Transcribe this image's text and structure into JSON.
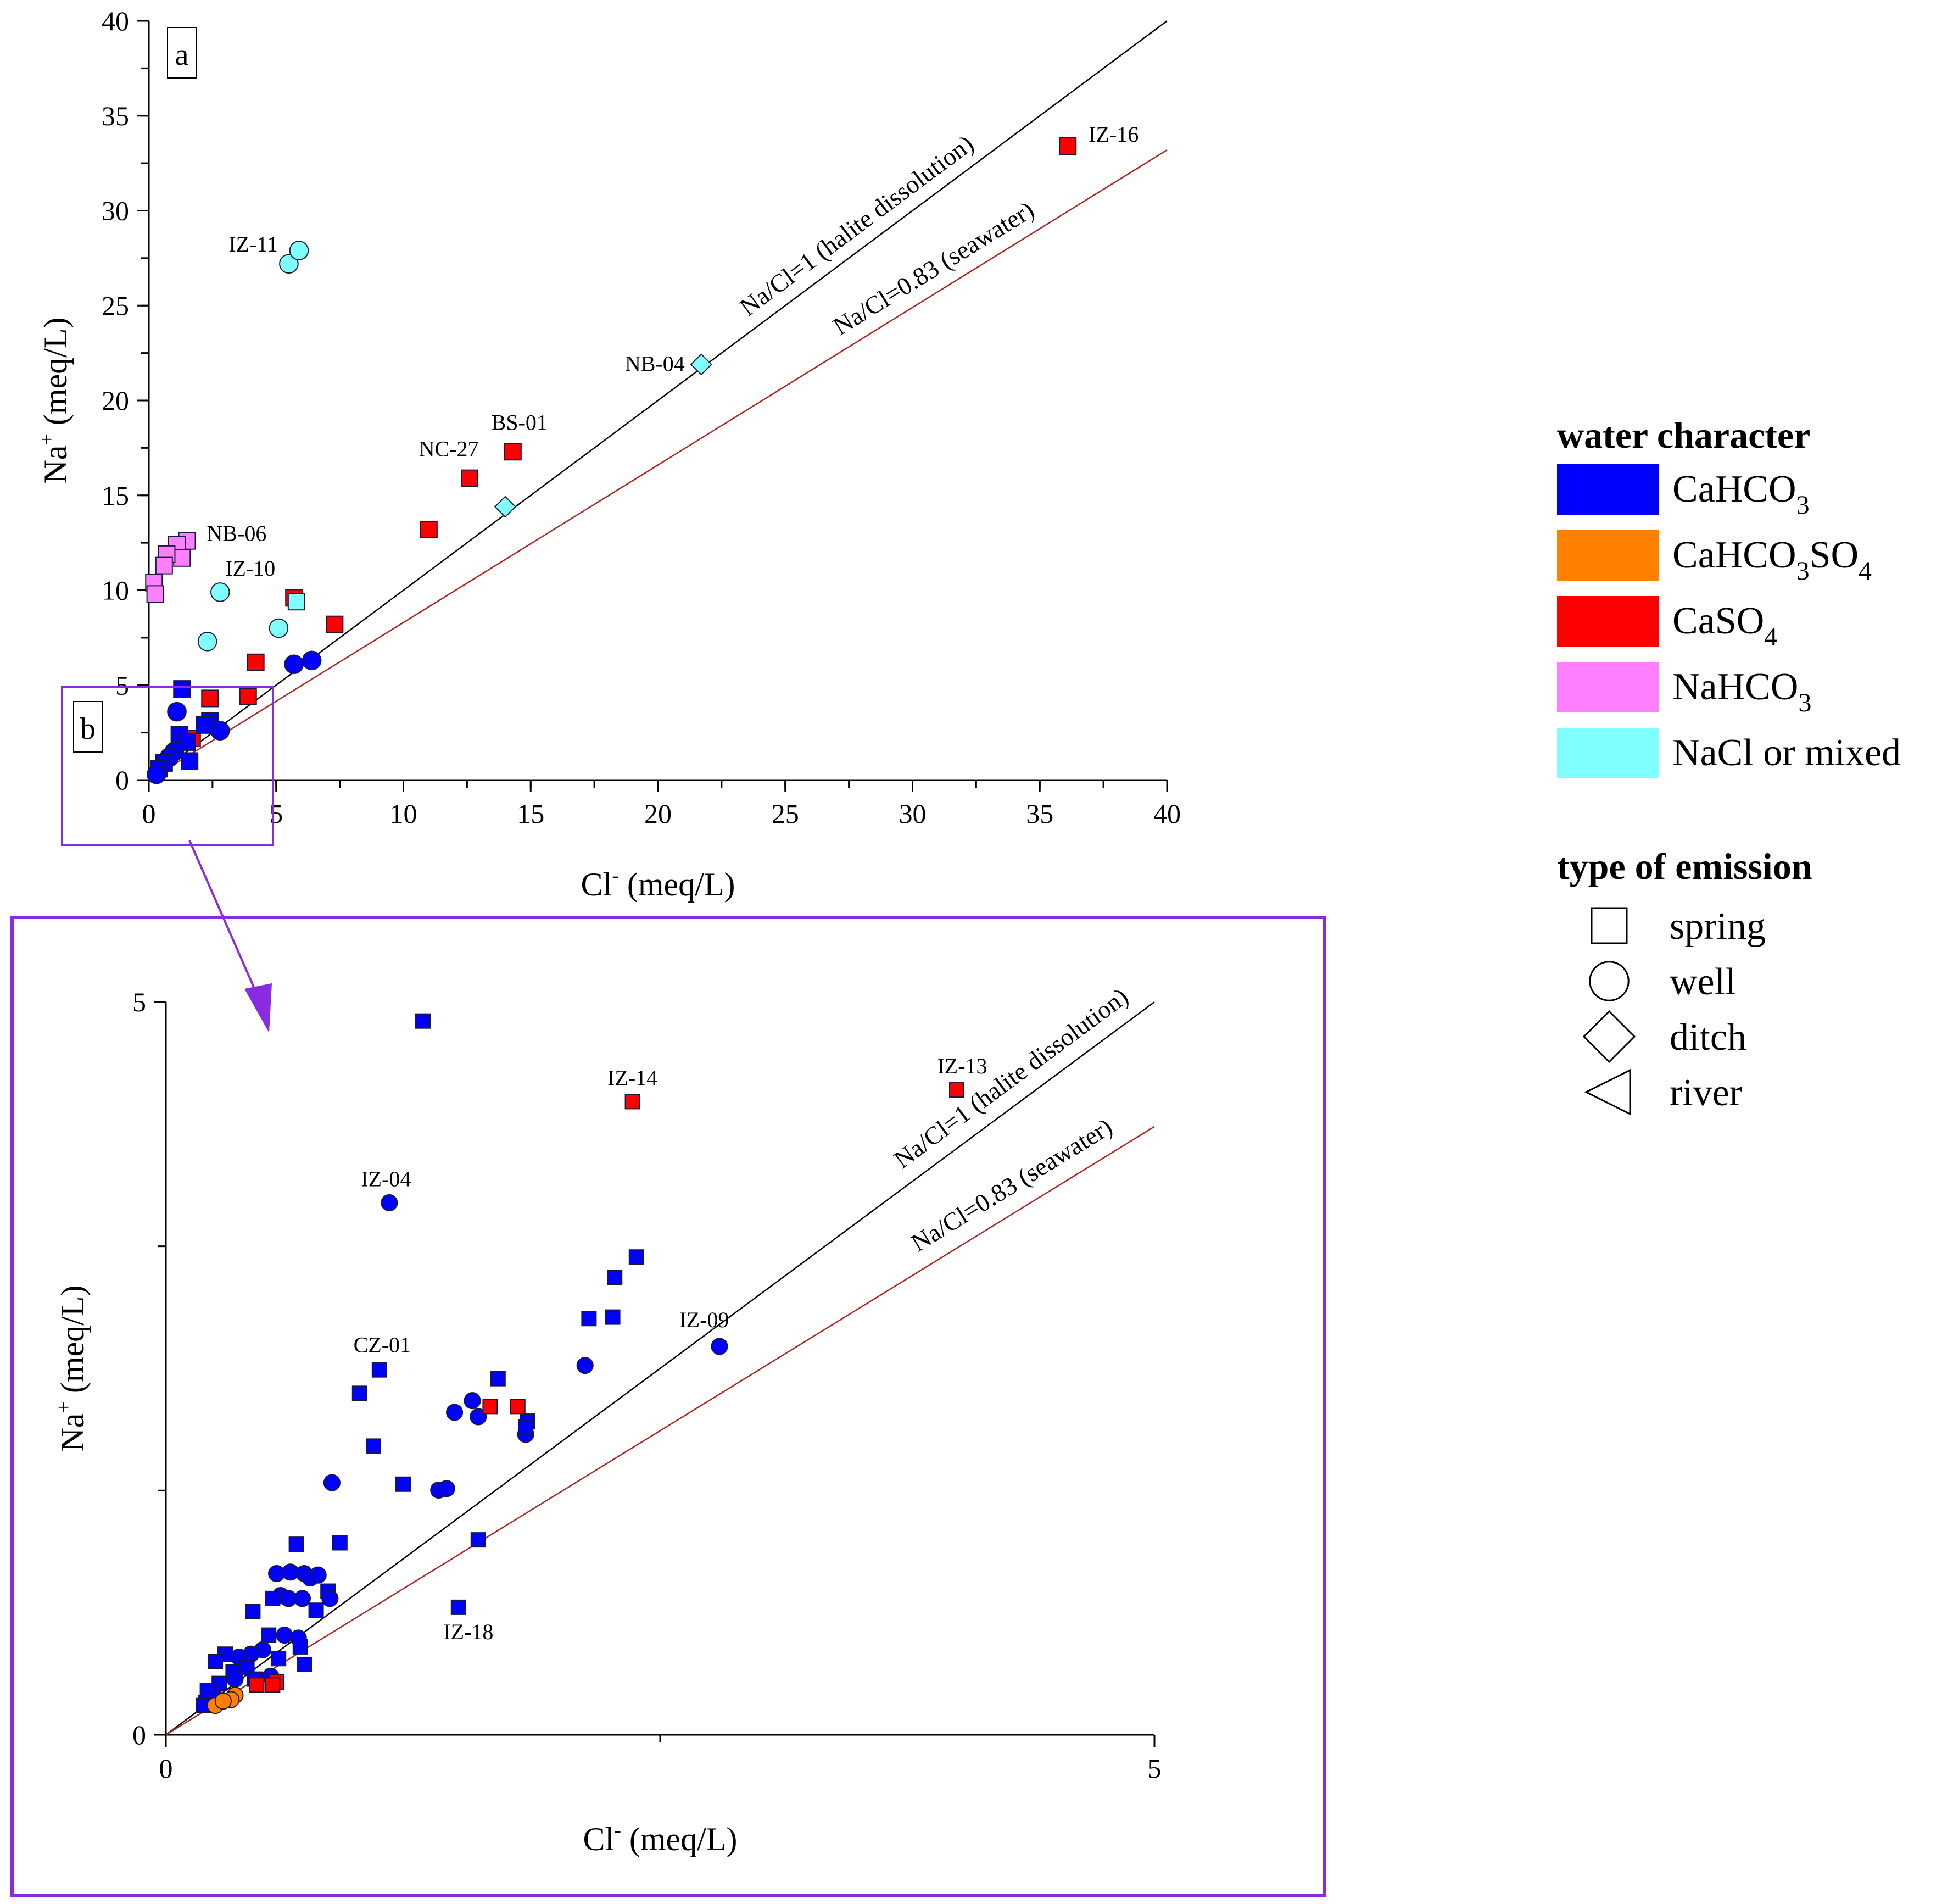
{
  "chart_data": [
    {
      "panel": "a",
      "type": "scatter",
      "xlabel": "Cl",
      "xlabel_sup": "-",
      "xlabel_unit": " (meq/L)",
      "ylabel": "Na",
      "ylabel_sup": "+",
      "ylabel_unit": " (meq/L)",
      "xlim": [
        0,
        40
      ],
      "ylim": [
        0,
        40
      ],
      "x_ticks": [
        0,
        5,
        10,
        15,
        20,
        25,
        30,
        35,
        40
      ],
      "y_ticks": [
        0,
        5,
        10,
        15,
        20,
        25,
        30,
        35,
        40
      ],
      "inset_box_label": "b",
      "reference_lines": [
        {
          "label": "Na/Cl=1 (halite dissolution)",
          "slope": 1.0,
          "color": "#000000"
        },
        {
          "label": "Na/Cl=0.83 (seawater)",
          "slope": 0.83,
          "color": "#b22222"
        }
      ],
      "points": [
        {
          "x": 36.1,
          "y": 33.4,
          "class": "CaSO4",
          "emission": "spring",
          "label": "IZ-16"
        },
        {
          "x": 14.3,
          "y": 17.3,
          "class": "CaSO4",
          "emission": "spring",
          "label": "BS-01"
        },
        {
          "x": 12.6,
          "y": 15.9,
          "class": "CaSO4",
          "emission": "spring",
          "label": "NC-27"
        },
        {
          "x": 11.0,
          "y": 13.2,
          "class": "CaSO4",
          "emission": "spring"
        },
        {
          "x": 5.7,
          "y": 9.6,
          "class": "CaSO4",
          "emission": "spring"
        },
        {
          "x": 7.3,
          "y": 8.2,
          "class": "CaSO4",
          "emission": "spring"
        },
        {
          "x": 4.2,
          "y": 6.2,
          "class": "CaSO4",
          "emission": "spring"
        },
        {
          "x": 2.4,
          "y": 4.3,
          "class": "CaSO4",
          "emission": "spring"
        },
        {
          "x": 3.9,
          "y": 4.4,
          "class": "CaSO4",
          "emission": "spring"
        },
        {
          "x": 1.7,
          "y": 2.2,
          "class": "CaSO4",
          "emission": "spring"
        },
        {
          "x": 21.7,
          "y": 21.9,
          "class": "NaCl or mixed",
          "emission": "ditch",
          "label": "NB-04"
        },
        {
          "x": 14.0,
          "y": 14.4,
          "class": "NaCl or mixed",
          "emission": "ditch"
        },
        {
          "x": 5.5,
          "y": 27.2,
          "class": "NaCl or mixed",
          "emission": "well",
          "label": "IZ-11"
        },
        {
          "x": 5.9,
          "y": 27.9,
          "class": "NaCl or mixed",
          "emission": "well"
        },
        {
          "x": 2.8,
          "y": 9.9,
          "class": "NaCl or mixed",
          "emission": "well",
          "label": "IZ-10"
        },
        {
          "x": 2.3,
          "y": 7.3,
          "class": "NaCl or mixed",
          "emission": "well"
        },
        {
          "x": 5.1,
          "y": 8.0,
          "class": "NaCl or mixed",
          "emission": "well"
        },
        {
          "x": 5.8,
          "y": 9.4,
          "class": "NaCl or mixed",
          "emission": "spring"
        },
        {
          "x": 1.5,
          "y": 12.6,
          "class": "NaHCO3",
          "emission": "spring",
          "label": "NB-06"
        },
        {
          "x": 1.1,
          "y": 12.4,
          "class": "NaHCO3",
          "emission": "spring"
        },
        {
          "x": 1.3,
          "y": 11.7,
          "class": "NaHCO3",
          "emission": "spring"
        },
        {
          "x": 0.7,
          "y": 11.9,
          "class": "NaHCO3",
          "emission": "spring"
        },
        {
          "x": 0.6,
          "y": 11.3,
          "class": "NaHCO3",
          "emission": "spring"
        },
        {
          "x": 0.2,
          "y": 10.4,
          "class": "NaHCO3",
          "emission": "spring"
        },
        {
          "x": 0.25,
          "y": 9.8,
          "class": "NaHCO3",
          "emission": "spring"
        },
        {
          "x": 6.4,
          "y": 6.3,
          "class": "CaHCO3",
          "emission": "well"
        },
        {
          "x": 5.7,
          "y": 6.1,
          "class": "CaHCO3",
          "emission": "well"
        },
        {
          "x": 1.3,
          "y": 4.8,
          "class": "CaHCO3",
          "emission": "spring"
        },
        {
          "x": 1.1,
          "y": 3.6,
          "class": "CaHCO3",
          "emission": "well"
        },
        {
          "x": 2.4,
          "y": 3.1,
          "class": "CaHCO3",
          "emission": "spring"
        },
        {
          "x": 2.2,
          "y": 2.9,
          "class": "CaHCO3",
          "emission": "spring"
        },
        {
          "x": 2.8,
          "y": 2.6,
          "class": "CaHCO3",
          "emission": "well"
        },
        {
          "x": 1.2,
          "y": 2.4,
          "class": "CaHCO3",
          "emission": "spring"
        },
        {
          "x": 1.5,
          "y": 2.0,
          "class": "CaHCO3",
          "emission": "spring"
        },
        {
          "x": 1.0,
          "y": 1.5,
          "class": "CaHCO3",
          "emission": "well"
        },
        {
          "x": 0.8,
          "y": 1.2,
          "class": "CaHCO3",
          "emission": "well"
        },
        {
          "x": 0.6,
          "y": 0.9,
          "class": "CaHCO3",
          "emission": "spring"
        },
        {
          "x": 0.4,
          "y": 0.6,
          "class": "CaHCO3",
          "emission": "spring"
        },
        {
          "x": 1.6,
          "y": 1.0,
          "class": "CaHCO3",
          "emission": "spring"
        },
        {
          "x": 0.3,
          "y": 0.3,
          "class": "CaHCO3",
          "emission": "well"
        }
      ]
    },
    {
      "panel": "b",
      "type": "scatter",
      "xlabel": "Cl",
      "xlabel_sup": "-",
      "xlabel_unit": " (meq/L)",
      "ylabel": "Na",
      "ylabel_sup": "+",
      "ylabel_unit": " (meq/L)",
      "xlim": [
        0,
        5
      ],
      "ylim": [
        0,
        5
      ],
      "x_ticks": [
        0,
        5
      ],
      "y_ticks": [
        0,
        5
      ],
      "reference_lines": [
        {
          "label": "Na/Cl=1 (halite dissolution)",
          "slope": 1.0,
          "color": "#000000"
        },
        {
          "label": "Na/Cl=0.83 (seawater)",
          "slope": 0.83,
          "color": "#b22222"
        }
      ],
      "points": [
        {
          "x": 1.3,
          "y": 4.87,
          "class": "CaHCO3",
          "emission": "spring"
        },
        {
          "x": 2.36,
          "y": 4.32,
          "class": "CaSO4",
          "emission": "spring",
          "label": "IZ-14"
        },
        {
          "x": 4.0,
          "y": 4.4,
          "class": "CaSO4",
          "emission": "spring",
          "label": "IZ-13"
        },
        {
          "x": 1.13,
          "y": 3.63,
          "class": "CaHCO3",
          "emission": "well",
          "label": "IZ-04"
        },
        {
          "x": 2.38,
          "y": 3.26,
          "class": "CaHCO3",
          "emission": "spring"
        },
        {
          "x": 2.27,
          "y": 3.12,
          "class": "CaHCO3",
          "emission": "spring"
        },
        {
          "x": 2.14,
          "y": 2.84,
          "class": "CaHCO3",
          "emission": "spring"
        },
        {
          "x": 2.26,
          "y": 2.85,
          "class": "CaHCO3",
          "emission": "spring"
        },
        {
          "x": 2.8,
          "y": 2.65,
          "class": "CaHCO3",
          "emission": "well",
          "label": "IZ-09"
        },
        {
          "x": 2.12,
          "y": 2.52,
          "class": "CaHCO3",
          "emission": "well"
        },
        {
          "x": 1.08,
          "y": 2.49,
          "class": "CaHCO3",
          "emission": "spring",
          "label": "CZ-01"
        },
        {
          "x": 0.98,
          "y": 2.33,
          "class": "CaHCO3",
          "emission": "spring"
        },
        {
          "x": 1.68,
          "y": 2.43,
          "class": "CaHCO3",
          "emission": "spring"
        },
        {
          "x": 1.55,
          "y": 2.28,
          "class": "CaHCO3",
          "emission": "well"
        },
        {
          "x": 1.46,
          "y": 2.2,
          "class": "CaHCO3",
          "emission": "well"
        },
        {
          "x": 1.58,
          "y": 2.17,
          "class": "CaHCO3",
          "emission": "well"
        },
        {
          "x": 1.83,
          "y": 2.14,
          "class": "CaHCO3",
          "emission": "spring"
        },
        {
          "x": 1.82,
          "y": 2.05,
          "class": "CaHCO3",
          "emission": "well"
        },
        {
          "x": 1.82,
          "y": 2.1,
          "class": "CaHCO3",
          "emission": "spring"
        },
        {
          "x": 1.64,
          "y": 2.24,
          "class": "CaSO4",
          "emission": "spring"
        },
        {
          "x": 1.78,
          "y": 2.24,
          "class": "CaSO4",
          "emission": "spring"
        },
        {
          "x": 1.05,
          "y": 1.97,
          "class": "CaHCO3",
          "emission": "spring"
        },
        {
          "x": 0.84,
          "y": 1.72,
          "class": "CaHCO3",
          "emission": "well"
        },
        {
          "x": 1.2,
          "y": 1.71,
          "class": "CaHCO3",
          "emission": "spring"
        },
        {
          "x": 1.38,
          "y": 1.67,
          "class": "CaHCO3",
          "emission": "well"
        },
        {
          "x": 1.42,
          "y": 1.68,
          "class": "CaHCO3",
          "emission": "well"
        },
        {
          "x": 1.58,
          "y": 1.33,
          "class": "CaHCO3",
          "emission": "spring"
        },
        {
          "x": 1.48,
          "y": 0.87,
          "class": "CaHCO3",
          "emission": "spring",
          "label": "IZ-18"
        },
        {
          "x": 0.66,
          "y": 1.3,
          "class": "CaHCO3",
          "emission": "spring"
        },
        {
          "x": 0.88,
          "y": 1.31,
          "class": "CaHCO3",
          "emission": "spring"
        },
        {
          "x": 0.56,
          "y": 1.1,
          "class": "CaHCO3",
          "emission": "well"
        },
        {
          "x": 0.63,
          "y": 1.11,
          "class": "CaHCO3",
          "emission": "well"
        },
        {
          "x": 0.7,
          "y": 1.1,
          "class": "CaHCO3",
          "emission": "well"
        },
        {
          "x": 0.73,
          "y": 1.07,
          "class": "CaHCO3",
          "emission": "well"
        },
        {
          "x": 0.77,
          "y": 1.09,
          "class": "CaHCO3",
          "emission": "well"
        },
        {
          "x": 0.82,
          "y": 0.98,
          "class": "CaHCO3",
          "emission": "spring"
        },
        {
          "x": 0.83,
          "y": 0.93,
          "class": "CaHCO3",
          "emission": "well"
        },
        {
          "x": 0.58,
          "y": 0.95,
          "class": "CaHCO3",
          "emission": "well"
        },
        {
          "x": 0.62,
          "y": 0.93,
          "class": "CaHCO3",
          "emission": "well"
        },
        {
          "x": 0.54,
          "y": 0.93,
          "class": "CaHCO3",
          "emission": "spring"
        },
        {
          "x": 0.44,
          "y": 0.84,
          "class": "CaHCO3",
          "emission": "spring"
        },
        {
          "x": 0.76,
          "y": 0.85,
          "class": "CaHCO3",
          "emission": "spring"
        },
        {
          "x": 0.69,
          "y": 0.93,
          "class": "CaHCO3",
          "emission": "well"
        },
        {
          "x": 0.52,
          "y": 0.68,
          "class": "CaHCO3",
          "emission": "spring"
        },
        {
          "x": 0.6,
          "y": 0.68,
          "class": "CaHCO3",
          "emission": "well"
        },
        {
          "x": 0.67,
          "y": 0.66,
          "class": "CaHCO3",
          "emission": "well"
        },
        {
          "x": 0.49,
          "y": 0.58,
          "class": "CaHCO3",
          "emission": "well"
        },
        {
          "x": 0.43,
          "y": 0.55,
          "class": "CaHCO3",
          "emission": "well"
        },
        {
          "x": 0.37,
          "y": 0.53,
          "class": "CaHCO3",
          "emission": "well"
        },
        {
          "x": 0.3,
          "y": 0.55,
          "class": "CaHCO3",
          "emission": "spring"
        },
        {
          "x": 0.25,
          "y": 0.5,
          "class": "CaHCO3",
          "emission": "spring"
        },
        {
          "x": 0.34,
          "y": 0.43,
          "class": "CaHCO3",
          "emission": "spring"
        },
        {
          "x": 0.41,
          "y": 0.46,
          "class": "CaHCO3",
          "emission": "spring"
        },
        {
          "x": 0.68,
          "y": 0.6,
          "class": "CaHCO3",
          "emission": "spring"
        },
        {
          "x": 0.7,
          "y": 0.48,
          "class": "CaHCO3",
          "emission": "spring"
        },
        {
          "x": 0.57,
          "y": 0.52,
          "class": "CaHCO3",
          "emission": "spring"
        },
        {
          "x": 0.45,
          "y": 0.38,
          "class": "CaHCO3",
          "emission": "spring"
        },
        {
          "x": 0.35,
          "y": 0.38,
          "class": "CaHCO3",
          "emission": "well"
        },
        {
          "x": 0.27,
          "y": 0.35,
          "class": "CaHCO3",
          "emission": "spring"
        },
        {
          "x": 0.24,
          "y": 0.28,
          "class": "CaHCO3",
          "emission": "well"
        },
        {
          "x": 0.21,
          "y": 0.3,
          "class": "CaHCO3",
          "emission": "spring"
        },
        {
          "x": 0.2,
          "y": 0.22,
          "class": "CaHCO3",
          "emission": "spring"
        },
        {
          "x": 0.19,
          "y": 0.2,
          "class": "CaHCO3",
          "emission": "spring"
        },
        {
          "x": 0.53,
          "y": 0.4,
          "class": "CaHCO3",
          "emission": "well"
        },
        {
          "x": 0.56,
          "y": 0.36,
          "class": "CaSO4",
          "emission": "spring"
        },
        {
          "x": 0.54,
          "y": 0.34,
          "class": "CaSO4",
          "emission": "spring"
        },
        {
          "x": 0.46,
          "y": 0.34,
          "class": "CaSO4",
          "emission": "spring"
        },
        {
          "x": 0.35,
          "y": 0.27,
          "class": "CaHCO3SO4",
          "emission": "well"
        },
        {
          "x": 0.33,
          "y": 0.24,
          "class": "CaHCO3SO4",
          "emission": "well"
        },
        {
          "x": 0.25,
          "y": 0.2,
          "class": "CaHCO3SO4",
          "emission": "well"
        },
        {
          "x": 0.29,
          "y": 0.23,
          "class": "CaHCO3SO4",
          "emission": "well"
        }
      ]
    }
  ],
  "legend": {
    "title_color": "water character",
    "colors": [
      {
        "key": "CaHCO3",
        "base": "CaHCO",
        "sub": "3",
        "rest": "",
        "sub2": "",
        "color": "#0000ff"
      },
      {
        "key": "CaHCO3SO4",
        "base": "CaHCO",
        "sub": "3",
        "rest": "SO",
        "sub2": "4",
        "color": "#ff7f00"
      },
      {
        "key": "CaSO4",
        "base": "CaSO",
        "sub": "4",
        "rest": "",
        "sub2": "",
        "color": "#ff0000"
      },
      {
        "key": "NaHCO3",
        "base": "NaHCO",
        "sub": "3",
        "rest": "",
        "sub2": "",
        "color": "#ff80ff"
      },
      {
        "key": "NaCl or mixed",
        "base": "NaCl or mixed",
        "sub": "",
        "rest": "",
        "sub2": "",
        "color": "#80ffff"
      }
    ],
    "title_type": "type of emission",
    "types": [
      {
        "name": "spring",
        "shape": "square"
      },
      {
        "name": "well",
        "shape": "circle"
      },
      {
        "name": "ditch",
        "shape": "diamond"
      },
      {
        "name": "river",
        "shape": "triangle"
      }
    ]
  },
  "accent_color": "#8a2be2"
}
